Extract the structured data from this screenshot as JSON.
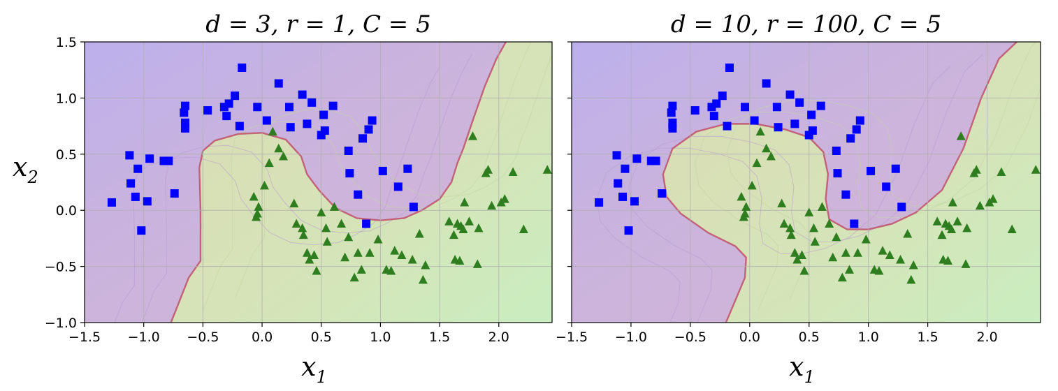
{
  "chart_data": [
    {
      "type": "scatter",
      "title": "d = 3, r = 1, C = 5",
      "xlabel": "x1",
      "ylabel": "x2",
      "xlim": [
        -1.5,
        2.45
      ],
      "ylim": [
        -1.0,
        1.5
      ],
      "xticks": [
        "−1.5",
        "−1.0",
        "−0.5",
        "0.0",
        "0.5",
        "1.0",
        "1.5",
        "2.0"
      ],
      "yticks": [
        "1.5",
        "1.0",
        "0.5",
        "0.0",
        "−0.5",
        "−1.0"
      ],
      "grid": true,
      "colors": {
        "class0": "#0000ff",
        "class1": "#2e7d1e",
        "region0": "#c9a6d8",
        "region1": "#cfe2a8",
        "boundary": "#c0506a"
      },
      "series": [
        {
          "marker": "square",
          "color": "#0000ff",
          "points": [
            [
              -1.27,
              0.07
            ],
            [
              -1.12,
              0.49
            ],
            [
              -1.11,
              0.24
            ],
            [
              -1.07,
              0.12
            ],
            [
              -1.05,
              0.37
            ],
            [
              -1.02,
              -0.18
            ],
            [
              -0.97,
              0.08
            ],
            [
              -0.95,
              0.46
            ],
            [
              -0.83,
              0.44
            ],
            [
              -0.79,
              0.44
            ],
            [
              -0.74,
              0.15
            ],
            [
              -0.66,
              0.87
            ],
            [
              -0.65,
              0.93
            ],
            [
              -0.65,
              0.78
            ],
            [
              -0.65,
              0.73
            ],
            [
              -0.46,
              0.89
            ],
            [
              -0.32,
              0.92
            ],
            [
              -0.3,
              0.84
            ],
            [
              -0.28,
              0.95
            ],
            [
              -0.23,
              1.02
            ],
            [
              -0.19,
              0.75
            ],
            [
              -0.17,
              1.27
            ],
            [
              -0.04,
              0.92
            ],
            [
              0.04,
              0.8
            ],
            [
              0.14,
              1.13
            ],
            [
              0.23,
              0.92
            ],
            [
              0.24,
              0.74
            ],
            [
              0.34,
              1.03
            ],
            [
              0.38,
              0.77
            ],
            [
              0.42,
              0.96
            ],
            [
              0.5,
              0.67
            ],
            [
              0.52,
              0.85
            ],
            [
              0.53,
              0.71
            ],
            [
              0.6,
              0.93
            ],
            [
              0.73,
              0.53
            ],
            [
              0.74,
              0.33
            ],
            [
              0.81,
              0.14
            ],
            [
              0.85,
              0.64
            ],
            [
              0.9,
              0.72
            ],
            [
              0.93,
              0.8
            ],
            [
              1.02,
              0.35
            ],
            [
              1.15,
              0.21
            ],
            [
              1.23,
              0.37
            ],
            [
              1.28,
              0.03
            ],
            [
              0.88,
              -0.12
            ]
          ]
        },
        {
          "marker": "triangle",
          "color": "#2e7d1e",
          "points": [
            [
              -0.07,
              0.12
            ],
            [
              -0.05,
              -0.06
            ],
            [
              -0.03,
              0.03
            ],
            [
              -0.04,
              -0.03
            ],
            [
              0.02,
              0.22
            ],
            [
              0.14,
              0.55
            ],
            [
              0.06,
              0.42
            ],
            [
              0.09,
              0.7
            ],
            [
              0.18,
              0.48
            ],
            [
              0.27,
              0.06
            ],
            [
              0.29,
              -0.12
            ],
            [
              0.34,
              -0.16
            ],
            [
              0.35,
              -0.22
            ],
            [
              0.38,
              -0.38
            ],
            [
              0.4,
              -0.44
            ],
            [
              0.44,
              -0.4
            ],
            [
              0.46,
              -0.54
            ],
            [
              0.5,
              -0.02
            ],
            [
              0.54,
              -0.16
            ],
            [
              0.55,
              -0.28
            ],
            [
              0.61,
              0.03
            ],
            [
              0.67,
              -0.12
            ],
            [
              0.7,
              -0.42
            ],
            [
              0.73,
              -0.24
            ],
            [
              0.78,
              -0.6
            ],
            [
              0.81,
              -0.38
            ],
            [
              0.84,
              -0.53
            ],
            [
              0.91,
              -0.38
            ],
            [
              0.98,
              -0.26
            ],
            [
              1.05,
              -0.53
            ],
            [
              1.09,
              -0.54
            ],
            [
              1.12,
              -0.36
            ],
            [
              1.18,
              -0.4
            ],
            [
              1.27,
              -0.44
            ],
            [
              1.33,
              -0.21
            ],
            [
              1.36,
              -0.62
            ],
            [
              1.38,
              -0.49
            ],
            [
              1.58,
              -0.1
            ],
            [
              1.62,
              -0.22
            ],
            [
              1.63,
              -0.44
            ],
            [
              1.65,
              -0.12
            ],
            [
              1.67,
              -0.45
            ],
            [
              1.68,
              -0.14
            ],
            [
              1.7,
              -0.17
            ],
            [
              1.71,
              0.07
            ],
            [
              1.75,
              -0.1
            ],
            [
              1.78,
              0.66
            ],
            [
              1.83,
              -0.16
            ],
            [
              1.89,
              0.33
            ],
            [
              1.91,
              0.36
            ],
            [
              1.94,
              0.04
            ],
            [
              2.02,
              0.07
            ],
            [
              2.05,
              0.1
            ],
            [
              2.12,
              0.34
            ],
            [
              2.21,
              -0.17
            ],
            [
              2.41,
              0.36
            ],
            [
              1.82,
              -0.48
            ]
          ]
        }
      ]
    },
    {
      "type": "scatter",
      "title": "d = 10, r = 100, C = 5",
      "xlabel": "x1",
      "xlim": [
        -1.5,
        2.45
      ],
      "ylim": [
        -1.0,
        1.5
      ],
      "xticks": [
        "−1.5",
        "−1.0",
        "−0.5",
        "0.0",
        "0.5",
        "1.0",
        "1.5",
        "2.0"
      ],
      "grid": true,
      "colors": {
        "class0": "#0000ff",
        "class1": "#2e7d1e",
        "region0": "#c9a6d8",
        "region1": "#cfe2a8",
        "boundary": "#c0506a"
      },
      "series": [
        {
          "marker": "square",
          "color": "#0000ff",
          "points": [
            [
              -1.27,
              0.07
            ],
            [
              -1.12,
              0.49
            ],
            [
              -1.11,
              0.24
            ],
            [
              -1.07,
              0.12
            ],
            [
              -1.05,
              0.37
            ],
            [
              -1.02,
              -0.18
            ],
            [
              -0.97,
              0.08
            ],
            [
              -0.95,
              0.46
            ],
            [
              -0.83,
              0.44
            ],
            [
              -0.79,
              0.44
            ],
            [
              -0.74,
              0.15
            ],
            [
              -0.66,
              0.87
            ],
            [
              -0.65,
              0.93
            ],
            [
              -0.65,
              0.78
            ],
            [
              -0.65,
              0.73
            ],
            [
              -0.46,
              0.89
            ],
            [
              -0.32,
              0.92
            ],
            [
              -0.3,
              0.84
            ],
            [
              -0.28,
              0.95
            ],
            [
              -0.23,
              1.02
            ],
            [
              -0.19,
              0.75
            ],
            [
              -0.17,
              1.27
            ],
            [
              -0.04,
              0.92
            ],
            [
              0.04,
              0.8
            ],
            [
              0.14,
              1.13
            ],
            [
              0.23,
              0.92
            ],
            [
              0.24,
              0.74
            ],
            [
              0.34,
              1.03
            ],
            [
              0.38,
              0.77
            ],
            [
              0.42,
              0.96
            ],
            [
              0.5,
              0.67
            ],
            [
              0.52,
              0.85
            ],
            [
              0.53,
              0.71
            ],
            [
              0.6,
              0.93
            ],
            [
              0.73,
              0.53
            ],
            [
              0.74,
              0.33
            ],
            [
              0.81,
              0.14
            ],
            [
              0.85,
              0.64
            ],
            [
              0.9,
              0.72
            ],
            [
              0.93,
              0.8
            ],
            [
              1.02,
              0.35
            ],
            [
              1.15,
              0.21
            ],
            [
              1.23,
              0.37
            ],
            [
              1.28,
              0.03
            ],
            [
              0.88,
              -0.12
            ]
          ]
        },
        {
          "marker": "triangle",
          "color": "#2e7d1e",
          "points": [
            [
              -0.07,
              0.12
            ],
            [
              -0.05,
              -0.06
            ],
            [
              -0.03,
              0.03
            ],
            [
              -0.04,
              -0.03
            ],
            [
              0.02,
              0.22
            ],
            [
              0.14,
              0.55
            ],
            [
              0.06,
              0.42
            ],
            [
              0.09,
              0.7
            ],
            [
              0.18,
              0.48
            ],
            [
              0.27,
              0.06
            ],
            [
              0.29,
              -0.12
            ],
            [
              0.34,
              -0.16
            ],
            [
              0.35,
              -0.22
            ],
            [
              0.38,
              -0.38
            ],
            [
              0.4,
              -0.44
            ],
            [
              0.44,
              -0.4
            ],
            [
              0.46,
              -0.54
            ],
            [
              0.5,
              -0.02
            ],
            [
              0.54,
              -0.16
            ],
            [
              0.55,
              -0.28
            ],
            [
              0.61,
              0.03
            ],
            [
              0.67,
              -0.12
            ],
            [
              0.7,
              -0.42
            ],
            [
              0.73,
              -0.24
            ],
            [
              0.78,
              -0.6
            ],
            [
              0.81,
              -0.38
            ],
            [
              0.84,
              -0.53
            ],
            [
              0.91,
              -0.38
            ],
            [
              0.98,
              -0.26
            ],
            [
              1.05,
              -0.53
            ],
            [
              1.09,
              -0.54
            ],
            [
              1.12,
              -0.36
            ],
            [
              1.18,
              -0.4
            ],
            [
              1.27,
              -0.44
            ],
            [
              1.33,
              -0.21
            ],
            [
              1.36,
              -0.62
            ],
            [
              1.38,
              -0.49
            ],
            [
              1.58,
              -0.1
            ],
            [
              1.62,
              -0.22
            ],
            [
              1.63,
              -0.44
            ],
            [
              1.65,
              -0.12
            ],
            [
              1.67,
              -0.45
            ],
            [
              1.68,
              -0.14
            ],
            [
              1.7,
              -0.17
            ],
            [
              1.71,
              0.07
            ],
            [
              1.75,
              -0.1
            ],
            [
              1.78,
              0.66
            ],
            [
              1.83,
              -0.16
            ],
            [
              1.89,
              0.33
            ],
            [
              1.91,
              0.36
            ],
            [
              1.94,
              0.04
            ],
            [
              2.02,
              0.07
            ],
            [
              2.05,
              0.1
            ],
            [
              2.12,
              0.34
            ],
            [
              2.21,
              -0.17
            ],
            [
              2.41,
              0.36
            ],
            [
              1.82,
              -0.48
            ]
          ]
        }
      ]
    }
  ]
}
